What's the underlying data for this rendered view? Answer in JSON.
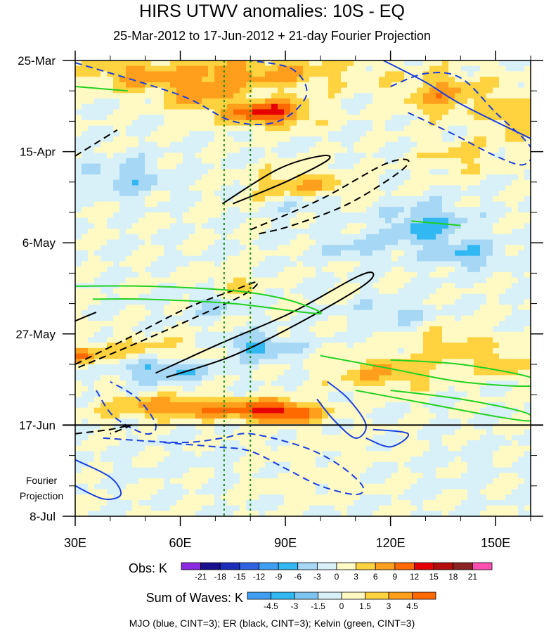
{
  "chart_data": {
    "type": "heatmap",
    "title": "HIRS UTWV anomalies: 10S - EQ",
    "subtitle": "25-Mar-2012 to 17-Jun-2012 + 21-day Fourier Projection",
    "x_axis": {
      "range": [
        30,
        160
      ],
      "ticks": [
        30,
        60,
        90,
        120,
        150
      ],
      "tick_labels": [
        "30E",
        "60E",
        "90E",
        "120E",
        "150E"
      ],
      "minor_step": 10
    },
    "y_axis": {
      "range_days": [
        0,
        105
      ],
      "ticks_days": [
        0,
        21,
        42,
        63,
        84,
        105
      ],
      "tick_labels": [
        "25-Mar",
        "15-Apr",
        "6-May",
        "27-May",
        "17-Jun",
        "8-Jul"
      ],
      "minor_step_days": 7,
      "reversed": true
    },
    "observation_end": "17-Jun",
    "projection_label": [
      "Fourier",
      "Projection"
    ],
    "reference_lines_lon": [
      72.5,
      80
    ],
    "obs_colorbar": {
      "label": "Obs: K",
      "levels": [
        -21,
        -18,
        -15,
        -12,
        -9,
        -6,
        -3,
        0,
        3,
        6,
        9,
        12,
        15,
        18,
        21
      ],
      "colors": [
        "#8a2be2",
        "#1a0f8f",
        "#1d2fb8",
        "#2e62e0",
        "#3f9ef2",
        "#31b8f2",
        "#a6d8f5",
        "#d8f0f8",
        "#fffac4",
        "#ffd23f",
        "#ff9f1c",
        "#ff6a00",
        "#e60000",
        "#b30d0d",
        "#8b2323",
        "#ff4fb0"
      ]
    },
    "waves_colorbar": {
      "label": "Sum of Waves: K",
      "levels": [
        -4.5,
        -3,
        -1.5,
        0,
        1.5,
        3,
        4.5
      ],
      "colors": [
        "#3f9ef2",
        "#31b8f2",
        "#7ec4f0",
        "#d8f0f8",
        "#fffac4",
        "#ffd23f",
        "#ff9f1c",
        "#ff6a00"
      ]
    },
    "contour_legend": "MJO (blue, CINT=3); ER (black, CINT=3); Kelvin (green, CINT=3)",
    "anomaly_field": {
      "background": 0,
      "blobs": [
        {
          "lon": 80,
          "day": 3,
          "rlon": 30,
          "rday": 4,
          "value": 7
        },
        {
          "lon": 45,
          "day": 3,
          "rlon": 12,
          "rday": 4,
          "value": 5
        },
        {
          "lon": 85,
          "day": 12,
          "rlon": 12,
          "rday": 3,
          "value": 13
        },
        {
          "lon": 65,
          "day": 8,
          "rlon": 10,
          "rday": 4,
          "value": 6
        },
        {
          "lon": 135,
          "day": 8,
          "rlon": 12,
          "rday": 5,
          "value": 7
        },
        {
          "lon": 155,
          "day": 13,
          "rlon": 6,
          "rday": 6,
          "value": 6
        },
        {
          "lon": 95,
          "day": 29,
          "rlon": 15,
          "rday": 4,
          "value": 6
        },
        {
          "lon": 140,
          "day": 22,
          "rlon": 10,
          "rday": 4,
          "value": 4
        },
        {
          "lon": 75,
          "day": 52,
          "rlon": 8,
          "rday": 3,
          "value": 4
        },
        {
          "lon": 50,
          "day": 67,
          "rlon": 18,
          "rday": 3,
          "value": 5
        },
        {
          "lon": 138,
          "day": 66,
          "rlon": 12,
          "rday": 4,
          "value": 5
        },
        {
          "lon": 118,
          "day": 72,
          "rlon": 15,
          "rday": 4,
          "value": 6
        },
        {
          "lon": 152,
          "day": 70,
          "rlon": 6,
          "rday": 3,
          "value": 6
        },
        {
          "lon": 60,
          "day": 80,
          "rlon": 22,
          "rday": 2.5,
          "value": 9
        },
        {
          "lon": 88,
          "day": 81,
          "rlon": 12,
          "rday": 2.5,
          "value": 13
        },
        {
          "lon": 32,
          "day": 68,
          "rlon": 4,
          "rday": 2,
          "value": 7
        },
        {
          "lon": 110,
          "day": 43,
          "rlon": 10,
          "rday": 3,
          "value": -4
        },
        {
          "lon": 130,
          "day": 38,
          "rlon": 12,
          "rday": 5,
          "value": -7
        },
        {
          "lon": 142,
          "day": 45,
          "rlon": 10,
          "rday": 3,
          "value": -6
        },
        {
          "lon": 55,
          "day": 71,
          "rlon": 12,
          "rday": 3,
          "value": -8
        },
        {
          "lon": 82,
          "day": 66,
          "rlon": 10,
          "rday": 3,
          "value": -7
        },
        {
          "lon": 45,
          "day": 27,
          "rlon": 12,
          "rday": 4,
          "value": -5
        },
        {
          "lon": 95,
          "day": 33,
          "rlon": 10,
          "rday": 3,
          "value": -4
        },
        {
          "lon": 120,
          "day": 58,
          "rlon": 10,
          "rday": 3,
          "value": -4
        },
        {
          "lon": 70,
          "day": 56,
          "rlon": 8,
          "rday": 3,
          "value": -4
        },
        {
          "lon": 95,
          "day": 98,
          "rlon": 15,
          "rday": 3,
          "value": 2
        },
        {
          "lon": 100,
          "day": 90,
          "rlon": 20,
          "rday": 4,
          "value": 1.8
        },
        {
          "lon": 70,
          "day": 92,
          "rlon": 25,
          "rday": 3,
          "value": -1
        },
        {
          "lon": 140,
          "day": 93,
          "rlon": 15,
          "rday": 5,
          "value": -0.8
        }
      ]
    },
    "contours": [
      {
        "wave": "MJO",
        "color": "#1a3fe0",
        "dashed": true,
        "points": [
          [
            30,
            0.5
          ],
          [
            60,
            8
          ],
          [
            75,
            14
          ],
          [
            88,
            14
          ],
          [
            96,
            8
          ],
          [
            92,
            2
          ],
          [
            80,
            0
          ]
        ]
      },
      {
        "wave": "MJO",
        "color": "#1a3fe0",
        "dashed": true,
        "points": [
          [
            120,
            6
          ],
          [
            130,
            3
          ],
          [
            140,
            4
          ],
          [
            150,
            12
          ],
          [
            160,
            20
          ],
          [
            158,
            24
          ],
          [
            150,
            22
          ],
          [
            138,
            17
          ],
          [
            125,
            12
          ]
        ]
      },
      {
        "wave": "MJO",
        "color": "#1a3fe0",
        "dashed": true,
        "points": [
          [
            36,
            76
          ],
          [
            41,
            82
          ],
          [
            50,
            86
          ],
          [
            53,
            84
          ],
          [
            48,
            78
          ],
          [
            40,
            74
          ]
        ]
      },
      {
        "wave": "MJO",
        "color": "#1a3fe0",
        "dashed": true,
        "points": [
          [
            38,
            87
          ],
          [
            60,
            88
          ],
          [
            72,
            87
          ],
          [
            80,
            86
          ],
          [
            95,
            89
          ],
          [
            105,
            93
          ],
          [
            112,
            98
          ],
          [
            110,
            100
          ],
          [
            100,
            98
          ],
          [
            90,
            94
          ],
          [
            80,
            90
          ],
          [
            70,
            89
          ],
          [
            55,
            88
          ]
        ]
      },
      {
        "wave": "MJO",
        "color": "#1a3fe0",
        "dashed": false,
        "points": [
          [
            118,
            0
          ],
          [
            130,
            5
          ],
          [
            140,
            10
          ],
          [
            160,
            18
          ]
        ]
      },
      {
        "wave": "MJO",
        "color": "#1a3fe0",
        "dashed": false,
        "points": [
          [
            30,
            92
          ],
          [
            40,
            96
          ],
          [
            43,
            100
          ],
          [
            38,
            101
          ],
          [
            30,
            98
          ]
        ]
      },
      {
        "wave": "MJO",
        "color": "#1a3fe0",
        "dashed": false,
        "points": [
          [
            102,
            74
          ],
          [
            108,
            78
          ],
          [
            113,
            84
          ],
          [
            110,
            87
          ],
          [
            104,
            83
          ],
          [
            99,
            78
          ]
        ]
      },
      {
        "wave": "MJO",
        "color": "#1a3fe0",
        "dashed": false,
        "points": [
          [
            115,
            85
          ],
          [
            125,
            86
          ],
          [
            120,
            89
          ],
          [
            113,
            87
          ]
        ]
      },
      {
        "wave": "ER",
        "color": "#000000",
        "dashed": true,
        "points": [
          [
            30,
            22
          ],
          [
            38,
            18
          ],
          [
            42,
            16
          ]
        ]
      },
      {
        "wave": "ER",
        "color": "#000000",
        "dashed": true,
        "points": [
          [
            80,
            39
          ],
          [
            100,
            32
          ],
          [
            118,
            24
          ],
          [
            125,
            23
          ],
          [
            122,
            26
          ],
          [
            108,
            33
          ],
          [
            92,
            38
          ],
          [
            82,
            40
          ]
        ]
      },
      {
        "wave": "ER",
        "color": "#000000",
        "dashed": true,
        "points": [
          [
            30,
            70
          ],
          [
            45,
            64
          ],
          [
            62,
            57
          ],
          [
            75,
            53
          ],
          [
            82,
            51
          ],
          [
            78,
            54
          ],
          [
            62,
            60
          ],
          [
            45,
            66
          ],
          [
            30,
            71
          ]
        ]
      },
      {
        "wave": "ER",
        "color": "#000000",
        "dashed": true,
        "points": [
          [
            30,
            86
          ],
          [
            40,
            85
          ],
          [
            46,
            84
          ],
          [
            40,
            86
          ]
        ]
      },
      {
        "wave": "ER",
        "color": "#000000",
        "dashed": false,
        "points": [
          [
            72,
            33
          ],
          [
            88,
            25
          ],
          [
            100,
            22
          ],
          [
            102,
            23
          ],
          [
            90,
            28
          ],
          [
            75,
            33
          ]
        ]
      },
      {
        "wave": "ER",
        "color": "#000000",
        "dashed": false,
        "points": [
          [
            53,
            72
          ],
          [
            72,
            65
          ],
          [
            92,
            58
          ],
          [
            110,
            50
          ],
          [
            115,
            49
          ],
          [
            112,
            52
          ],
          [
            95,
            60
          ],
          [
            75,
            68
          ],
          [
            56,
            73
          ]
        ]
      },
      {
        "wave": "ER",
        "color": "#000000",
        "dashed": false,
        "points": [
          [
            30,
            60
          ],
          [
            36,
            58
          ]
        ]
      },
      {
        "wave": "Kelvin",
        "color": "#22d022",
        "dashed": false,
        "points": [
          [
            30,
            6
          ],
          [
            45,
            7
          ]
        ]
      },
      {
        "wave": "Kelvin",
        "color": "#22d022",
        "dashed": false,
        "points": [
          [
            30,
            52
          ],
          [
            50,
            52
          ],
          [
            75,
            53
          ],
          [
            90,
            55
          ],
          [
            100,
            58
          ],
          [
            95,
            58
          ],
          [
            75,
            56
          ],
          [
            50,
            55
          ],
          [
            35,
            55
          ]
        ]
      },
      {
        "wave": "Kelvin",
        "color": "#22d022",
        "dashed": false,
        "points": [
          [
            100,
            68
          ],
          [
            120,
            71
          ],
          [
            140,
            74
          ],
          [
            160,
            75
          ],
          [
            160,
            73
          ],
          [
            140,
            70
          ],
          [
            120,
            69
          ]
        ]
      },
      {
        "wave": "Kelvin",
        "color": "#22d022",
        "dashed": false,
        "points": [
          [
            110,
            76
          ],
          [
            130,
            79
          ],
          [
            150,
            82
          ],
          [
            160,
            83
          ],
          [
            158,
            81
          ],
          [
            140,
            78
          ],
          [
            120,
            76
          ]
        ]
      },
      {
        "wave": "Kelvin",
        "color": "#22d022",
        "dashed": false,
        "points": [
          [
            126,
            37
          ],
          [
            140,
            38
          ]
        ]
      }
    ]
  }
}
